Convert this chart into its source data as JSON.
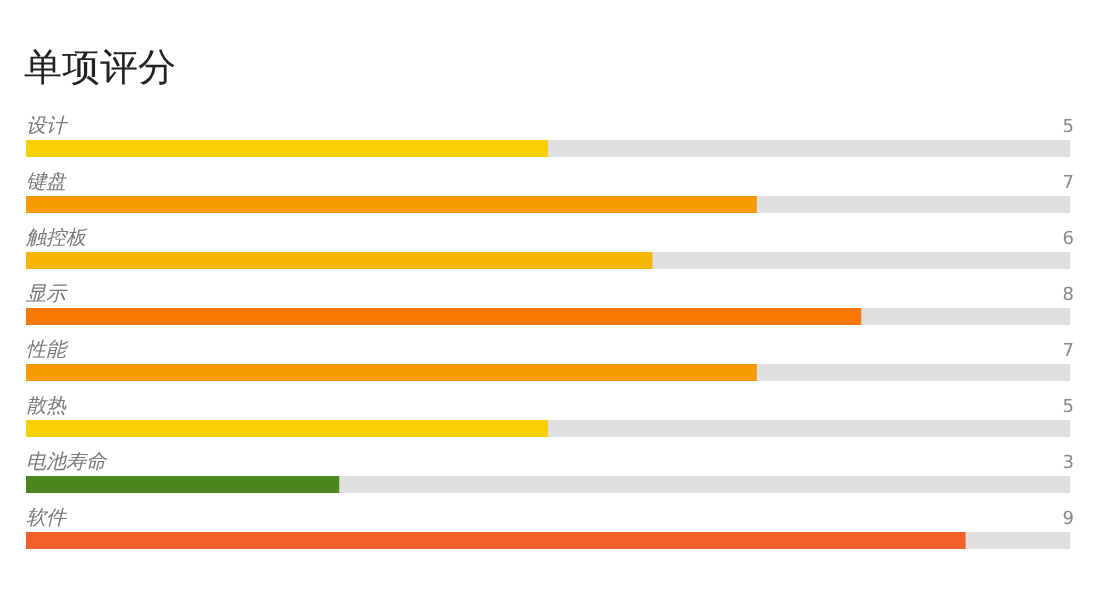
{
  "chart_data": {
    "type": "bar",
    "orientation": "horizontal",
    "title": "单项评分",
    "categories": [
      "设计",
      "键盘",
      "触控板",
      "显示",
      "性能",
      "散热",
      "电池寿命",
      "软件"
    ],
    "xlim": [
      0,
      10
    ],
    "series": [
      {
        "colors": [
          "#f7d000",
          "#f59a00",
          "#f7b400",
          "#f77800",
          "#f59a00",
          "#f7d000",
          "#4a8620",
          "#f55f2a"
        ],
        "values": [
          5,
          7,
          6,
          8,
          7,
          5,
          3,
          9
        ],
        "value_labels": [
          "5",
          "7",
          "6",
          "8",
          "7",
          "5",
          "3",
          "9"
        ]
      }
    ]
  }
}
